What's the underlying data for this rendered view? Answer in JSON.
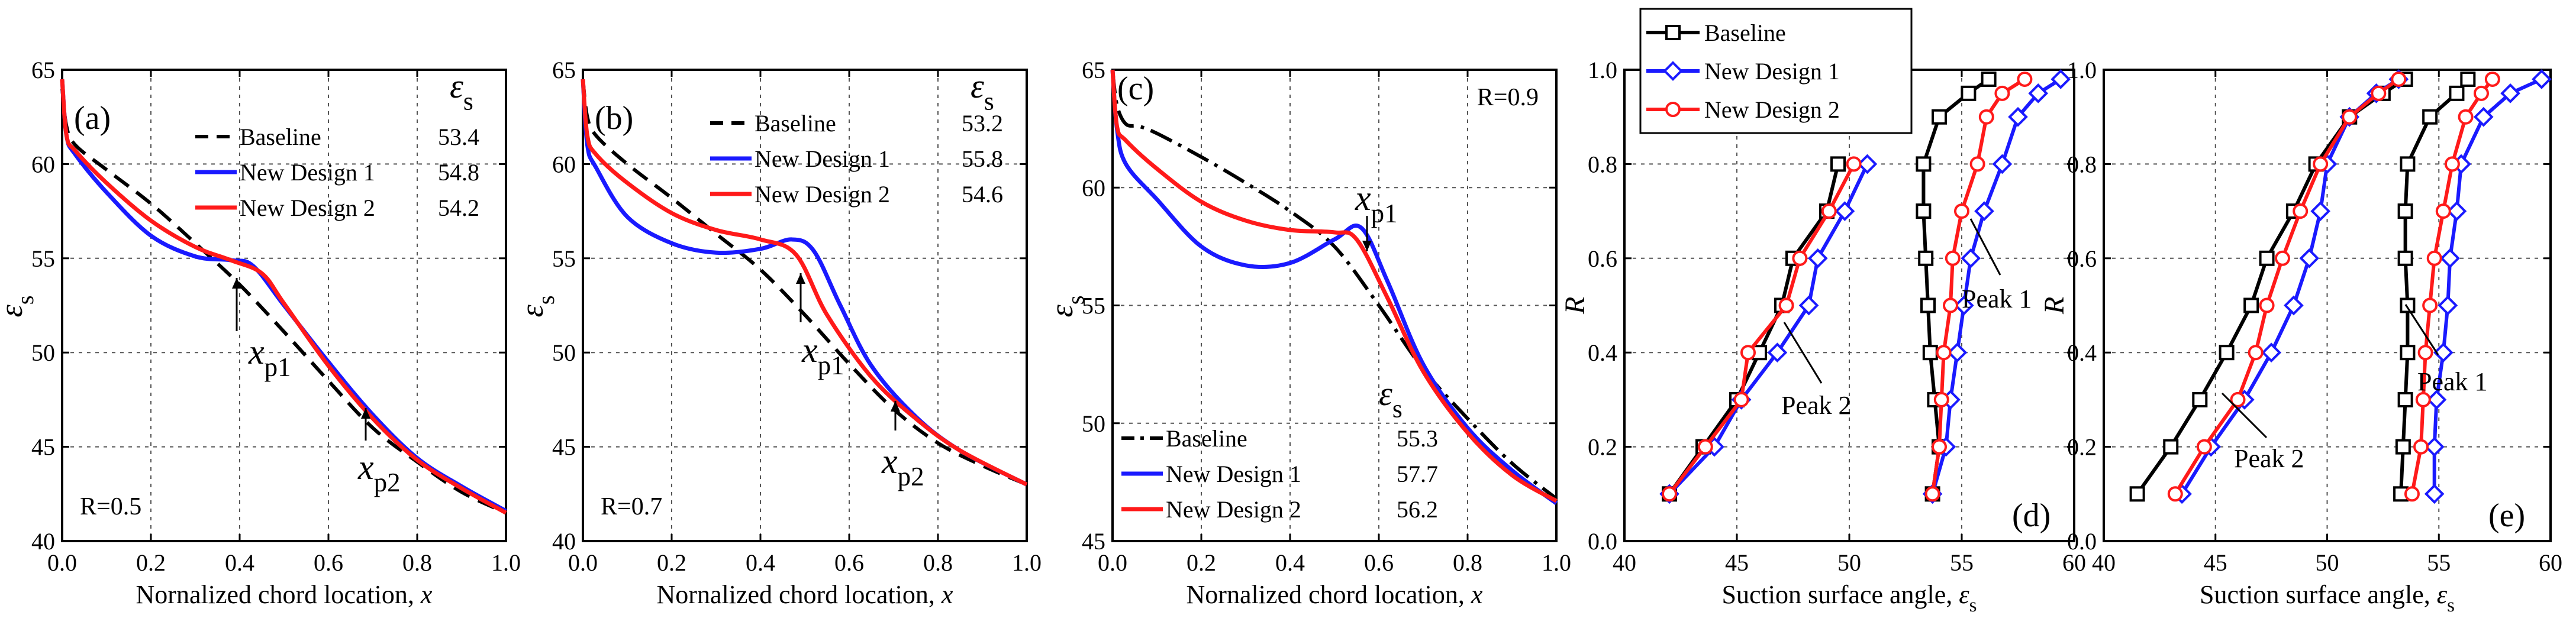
{
  "colors": {
    "baseline": "#000000",
    "new_design_1": "#1a1aff",
    "new_design_2": "#ff1a1a",
    "grid": "#555555"
  },
  "chart_data": [
    {
      "id": "a",
      "type": "line",
      "panel_label": "(a)",
      "condition": "R=0.5",
      "xlabel": "Nornalized chord location, x",
      "ylabel": "εs",
      "xlim": [
        0,
        1
      ],
      "ylim": [
        40,
        65
      ],
      "xticks": [
        "0.0",
        "0.2",
        "0.4",
        "0.6",
        "0.8",
        "1.0"
      ],
      "yticks": [
        "40",
        "45",
        "50",
        "55",
        "60",
        "65"
      ],
      "legend_header": "εs",
      "series": [
        {
          "name": "Baseline",
          "value": "53.4",
          "style": "dash",
          "x": [
            0,
            0.01,
            0.03,
            0.1,
            0.2,
            0.3,
            0.4,
            0.5,
            0.6,
            0.7,
            0.8,
            0.9,
            1.0
          ],
          "y": [
            64,
            62,
            61,
            59.7,
            57.9,
            55.8,
            53.6,
            51.1,
            48.5,
            46,
            44.2,
            42.6,
            41.5
          ]
        },
        {
          "name": "New Design 1",
          "value": "54.8",
          "style": "solid",
          "x": [
            0,
            0.01,
            0.03,
            0.1,
            0.2,
            0.3,
            0.38,
            0.43,
            0.5,
            0.6,
            0.7,
            0.8,
            0.9,
            1.0
          ],
          "y": [
            64.5,
            61.5,
            60.5,
            58.5,
            56.2,
            55.1,
            54.9,
            54.6,
            52.5,
            49.5,
            46.7,
            44.4,
            42.9,
            41.6
          ]
        },
        {
          "name": "New Design 2",
          "value": "54.2",
          "style": "solid",
          "x": [
            0,
            0.01,
            0.03,
            0.1,
            0.2,
            0.3,
            0.38,
            0.45,
            0.5,
            0.6,
            0.7,
            0.8,
            0.9,
            1.0
          ],
          "y": [
            64.5,
            61.5,
            60.7,
            59,
            57,
            55.6,
            54.9,
            54.2,
            52.6,
            49.3,
            46.5,
            44.3,
            42.8,
            41.5
          ]
        }
      ],
      "annotations": [
        {
          "label": "x",
          "sub": "p1"
        },
        {
          "label": "x",
          "sub": "p2"
        }
      ]
    },
    {
      "id": "b",
      "type": "line",
      "panel_label": "(b)",
      "condition": "R=0.7",
      "xlabel": "Nornalized chord location, x",
      "ylabel": "εs",
      "xlim": [
        0,
        1
      ],
      "ylim": [
        40,
        65
      ],
      "xticks": [
        "0.0",
        "0.2",
        "0.4",
        "0.6",
        "0.8",
        "1.0"
      ],
      "yticks": [
        "40",
        "45",
        "50",
        "55",
        "60",
        "65"
      ],
      "legend_header": "εs",
      "series": [
        {
          "name": "Baseline",
          "value": "53.2",
          "style": "dash",
          "x": [
            0,
            0.01,
            0.03,
            0.1,
            0.2,
            0.3,
            0.4,
            0.5,
            0.6,
            0.7,
            0.8,
            0.9,
            1.0
          ],
          "y": [
            64.5,
            62.5,
            61.5,
            60,
            58.2,
            56.3,
            54.4,
            52,
            49.4,
            47,
            45.2,
            44,
            43
          ]
        },
        {
          "name": "New Design 1",
          "value": "55.8",
          "style": "solid",
          "x": [
            0,
            0.01,
            0.03,
            0.1,
            0.2,
            0.3,
            0.4,
            0.47,
            0.52,
            0.58,
            0.65,
            0.75,
            0.85,
            1.0
          ],
          "y": [
            64.5,
            61,
            59.8,
            57.2,
            55.8,
            55.3,
            55.5,
            56,
            55.4,
            52.5,
            49.3,
            46.6,
            44.8,
            43
          ]
        },
        {
          "name": "New Design 2",
          "value": "54.6",
          "style": "solid",
          "x": [
            0,
            0.01,
            0.03,
            0.1,
            0.2,
            0.3,
            0.4,
            0.48,
            0.55,
            0.65,
            0.75,
            0.85,
            1.0
          ],
          "y": [
            64.5,
            61.5,
            60.5,
            59,
            57.4,
            56.5,
            56,
            55.2,
            52,
            48.7,
            46.5,
            44.8,
            43
          ]
        }
      ],
      "annotations": [
        {
          "label": "x",
          "sub": "p1"
        },
        {
          "label": "x",
          "sub": "p2"
        }
      ]
    },
    {
      "id": "c",
      "type": "line",
      "panel_label": "(c)",
      "condition": "R=0.9",
      "xlabel": "Nornalized chord location, x",
      "ylabel": "εs",
      "xlim": [
        0,
        1
      ],
      "ylim": [
        45,
        65
      ],
      "xticks": [
        "0.0",
        "0.2",
        "0.4",
        "0.6",
        "0.8",
        "1.0"
      ],
      "yticks": [
        "45",
        "50",
        "55",
        "60",
        "65"
      ],
      "legend_header": "εs",
      "series": [
        {
          "name": "Baseline",
          "value": "55.3",
          "style": "dashdot",
          "x": [
            0,
            0.01,
            0.03,
            0.06,
            0.1,
            0.2,
            0.3,
            0.4,
            0.5,
            0.6,
            0.7,
            0.8,
            0.9,
            1.0
          ],
          "y": [
            65,
            63.5,
            62.7,
            62.6,
            62.3,
            61.3,
            60.2,
            59,
            57.5,
            55,
            52.3,
            50.2,
            48.3,
            46.8
          ]
        },
        {
          "name": "New Design 1",
          "value": "57.7",
          "style": "solid",
          "x": [
            0,
            0.01,
            0.03,
            0.1,
            0.2,
            0.3,
            0.4,
            0.5,
            0.56,
            0.62,
            0.7,
            0.8,
            0.9,
            1.0
          ],
          "y": [
            65,
            62.5,
            61,
            59.5,
            57.5,
            56.7,
            56.8,
            57.8,
            58.3,
            56,
            52.5,
            49.8,
            48,
            46.6
          ]
        },
        {
          "name": "New Design 2",
          "value": "56.2",
          "style": "solid",
          "x": [
            0,
            0.01,
            0.03,
            0.1,
            0.2,
            0.3,
            0.4,
            0.5,
            0.55,
            0.62,
            0.7,
            0.8,
            0.9,
            1.0
          ],
          "y": [
            65,
            62.6,
            62,
            60.8,
            59.4,
            58.6,
            58.2,
            58.1,
            57.8,
            55.3,
            52.2,
            49.6,
            47.8,
            46.7
          ]
        }
      ],
      "annotations": [
        {
          "label": "x",
          "sub": "p1"
        }
      ]
    },
    {
      "id": "d",
      "type": "line",
      "panel_label": "(d)",
      "xlabel": "Suction surface angle, εs",
      "ylabel": "R",
      "xlim": [
        40,
        60
      ],
      "ylim": [
        0,
        1
      ],
      "xticks": [
        "40",
        "45",
        "50",
        "55",
        "60"
      ],
      "yticks": [
        "0.0",
        "0.2",
        "0.4",
        "0.6",
        "0.8",
        "1.0"
      ],
      "series": [
        {
          "name": "Baseline",
          "marker": "square",
          "group": "Peak 2",
          "x": [
            42,
            43.5,
            45,
            46,
            47,
            47.5,
            49,
            49.5
          ],
          "y": [
            0.1,
            0.2,
            0.3,
            0.4,
            0.5,
            0.6,
            0.7,
            0.8
          ]
        },
        {
          "name": "New Design 1",
          "marker": "diamond",
          "group": "Peak 2",
          "x": [
            42,
            44,
            45.2,
            46.8,
            48.2,
            48.6,
            49.8,
            50.8
          ],
          "y": [
            0.1,
            0.2,
            0.3,
            0.4,
            0.5,
            0.6,
            0.7,
            0.8
          ]
        },
        {
          "name": "New Design 2",
          "marker": "circle",
          "group": "Peak 2",
          "x": [
            42,
            43.6,
            45.2,
            45.5,
            47.2,
            47.8,
            49.1,
            50.2
          ],
          "y": [
            0.1,
            0.2,
            0.3,
            0.4,
            0.5,
            0.6,
            0.7,
            0.8
          ]
        },
        {
          "name": "Baseline",
          "marker": "square",
          "group": "Peak 1",
          "x": [
            53.7,
            54,
            53.8,
            53.6,
            53.5,
            53.4,
            53.3,
            53.3,
            54,
            55.3,
            56.2
          ],
          "y": [
            0.1,
            0.2,
            0.3,
            0.4,
            0.5,
            0.6,
            0.7,
            0.8,
            0.9,
            0.95,
            0.98
          ]
        },
        {
          "name": "New Design 1",
          "marker": "diamond",
          "group": "Peak 1",
          "x": [
            53.7,
            54.3,
            54.5,
            54.8,
            55.1,
            55.4,
            56,
            56.8,
            57.5,
            58.4,
            59.4
          ],
          "y": [
            0.1,
            0.2,
            0.3,
            0.4,
            0.5,
            0.6,
            0.7,
            0.8,
            0.9,
            0.95,
            0.98
          ]
        },
        {
          "name": "New Design 2",
          "marker": "circle",
          "group": "Peak 1",
          "x": [
            53.7,
            54,
            54.1,
            54.2,
            54.5,
            54.6,
            55,
            55.7,
            56.1,
            56.8,
            57.8
          ],
          "y": [
            0.1,
            0.2,
            0.3,
            0.4,
            0.5,
            0.6,
            0.7,
            0.8,
            0.9,
            0.95,
            0.98
          ]
        }
      ],
      "legend": [
        "Baseline",
        "New Design 1",
        "New Design 2"
      ],
      "annotations": [
        "Peak 2",
        "Peak 1"
      ]
    },
    {
      "id": "e",
      "type": "line",
      "panel_label": "(e)",
      "xlabel": "Suction surface angle, εs",
      "ylabel": "R",
      "xlim": [
        40,
        60
      ],
      "ylim": [
        0,
        1
      ],
      "xticks": [
        "40",
        "45",
        "50",
        "55",
        "60"
      ],
      "yticks": [
        "0.0",
        "0.2",
        "0.4",
        "0.6",
        "0.8",
        "1.0"
      ],
      "series": [
        {
          "name": "Baseline",
          "marker": "square",
          "group": "Peak 2",
          "x": [
            41.5,
            43,
            44.3,
            45.5,
            46.6,
            47.3,
            48.5,
            49.5,
            51,
            52.5,
            53.5
          ],
          "y": [
            0.1,
            0.2,
            0.3,
            0.4,
            0.5,
            0.6,
            0.7,
            0.8,
            0.9,
            0.95,
            0.98
          ]
        },
        {
          "name": "New Design 1",
          "marker": "diamond",
          "group": "Peak 2",
          "x": [
            43.5,
            44.8,
            46.3,
            47.5,
            48.5,
            49.2,
            49.7,
            50,
            51,
            52.2,
            53.2
          ],
          "y": [
            0.1,
            0.2,
            0.3,
            0.4,
            0.5,
            0.6,
            0.7,
            0.8,
            0.9,
            0.95,
            0.98
          ]
        },
        {
          "name": "New Design 2",
          "marker": "circle",
          "group": "Peak 2",
          "x": [
            43.2,
            44.5,
            46,
            46.8,
            47.3,
            48,
            48.8,
            49.7,
            51,
            52.3,
            53.2
          ],
          "y": [
            0.1,
            0.2,
            0.3,
            0.4,
            0.5,
            0.6,
            0.7,
            0.8,
            0.9,
            0.95,
            0.98
          ]
        },
        {
          "name": "Baseline",
          "marker": "square",
          "group": "Peak 1",
          "x": [
            53.3,
            53.4,
            53.5,
            53.6,
            53.6,
            53.5,
            53.5,
            53.6,
            54.6,
            55.8,
            56.3
          ],
          "y": [
            0.1,
            0.2,
            0.3,
            0.4,
            0.5,
            0.6,
            0.7,
            0.8,
            0.9,
            0.95,
            0.98
          ]
        },
        {
          "name": "New Design 1",
          "marker": "diamond",
          "group": "Peak 1",
          "x": [
            54.8,
            54.8,
            54.9,
            55.2,
            55.4,
            55.5,
            55.8,
            56,
            57,
            58.2,
            59.6
          ],
          "y": [
            0.1,
            0.2,
            0.3,
            0.4,
            0.5,
            0.6,
            0.7,
            0.8,
            0.9,
            0.95,
            0.98
          ]
        },
        {
          "name": "New Design 2",
          "marker": "circle",
          "group": "Peak 1",
          "x": [
            53.8,
            54.2,
            54.3,
            54.4,
            54.6,
            54.8,
            55.2,
            55.6,
            56.2,
            56.9,
            57.4
          ],
          "y": [
            0.1,
            0.2,
            0.3,
            0.4,
            0.5,
            0.6,
            0.7,
            0.8,
            0.9,
            0.95,
            0.98
          ]
        }
      ],
      "annotations": [
        "Peak 2",
        "Peak 1"
      ]
    }
  ]
}
